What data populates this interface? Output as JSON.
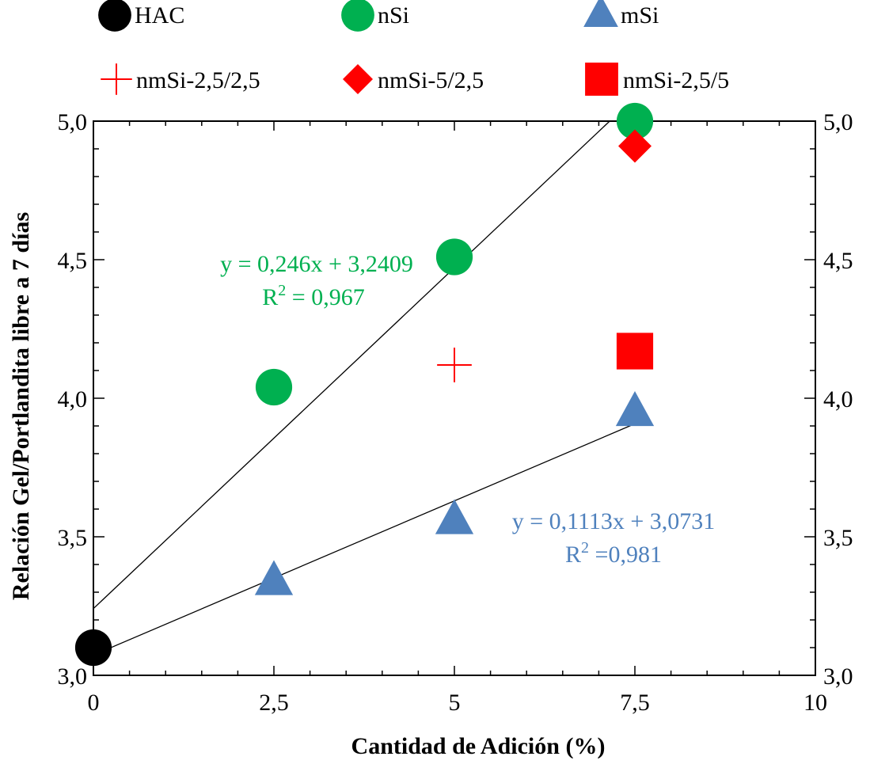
{
  "chart_data": {
    "type": "scatter",
    "xlabel": "Cantidad de Adición (%)",
    "ylabel": "Relación Gel/Portlandita libre a 7 días",
    "xlim": [
      0,
      10
    ],
    "ylim": [
      3.0,
      5.0
    ],
    "x_ticks": [
      {
        "value": 0,
        "label": "0"
      },
      {
        "value": 2.5,
        "label": "2,5"
      },
      {
        "value": 5,
        "label": "5"
      },
      {
        "value": 7.5,
        "label": "7,5"
      },
      {
        "value": 10,
        "label": "10"
      }
    ],
    "y_ticks": [
      {
        "value": 3.0,
        "label": "3,0"
      },
      {
        "value": 3.5,
        "label": "3,5"
      },
      {
        "value": 4.0,
        "label": "4,0"
      },
      {
        "value": 4.5,
        "label": "4,5"
      },
      {
        "value": 5.0,
        "label": "5,0"
      }
    ],
    "series": [
      {
        "name": "HAC",
        "marker": "circle",
        "color": "#000000",
        "points": [
          [
            0,
            3.1
          ]
        ]
      },
      {
        "name": "nSi",
        "marker": "circle",
        "color": "#00b050",
        "points": [
          [
            2.5,
            4.04
          ],
          [
            5,
            4.51
          ],
          [
            7.5,
            5.0
          ]
        ]
      },
      {
        "name": "mSi",
        "marker": "triangle",
        "color": "#4f81bd",
        "points": [
          [
            2.5,
            3.34
          ],
          [
            5,
            3.56
          ],
          [
            7.5,
            3.95
          ]
        ]
      },
      {
        "name": "nmSi-2,5/2,5",
        "marker": "plus",
        "color": "#ff0000",
        "points": [
          [
            5,
            4.12
          ]
        ]
      },
      {
        "name": "nmSi-5/2,5",
        "marker": "diamond",
        "color": "#ff0000",
        "points": [
          [
            7.5,
            4.91
          ]
        ]
      },
      {
        "name": "nmSi-2,5/5",
        "marker": "square",
        "color": "#ff0000",
        "points": [
          [
            7.5,
            4.17
          ]
        ]
      }
    ],
    "trendlines": [
      {
        "series": "nSi",
        "slope": 0.246,
        "intercept": 3.2409,
        "x_range": [
          0,
          7.5
        ]
      },
      {
        "series": "mSi",
        "slope": 0.1113,
        "intercept": 3.0731,
        "x_range": [
          0,
          7.5
        ]
      }
    ],
    "annotations": [
      {
        "name": "nsi-equation",
        "eq": "y = 0,246x + 3,2409",
        "r2_prefix": "R",
        "r2_rest": " = 0,967",
        "color": "#00b050"
      },
      {
        "name": "msi-equation",
        "eq": "y = 0,1113x + 3,0731",
        "r2_prefix": "R",
        "r2_rest": " =0,981",
        "color": "#4f81bd"
      }
    ],
    "legend": [
      "HAC",
      "nSi",
      "mSi",
      "nmSi-2,5/2,5",
      "nmSi-5/2,5",
      "nmSi-2,5/5"
    ]
  }
}
